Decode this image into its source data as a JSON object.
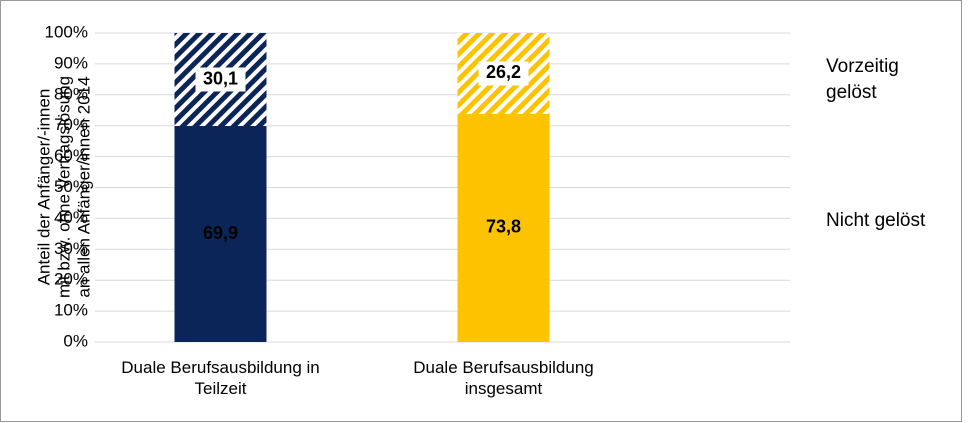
{
  "chart_data": {
    "type": "stacked_bar",
    "ylabel": [
      "Anteil der  Anfänger/-innen",
      "mit bzw. ohne Vertragslösung",
      "an allen Anfänger/innen 2014"
    ],
    "categories": [
      "Duale Berufsausbildung in Teilzeit",
      "Duale Berufsausbildung insgesamt"
    ],
    "series": [
      {
        "name": "Nicht gelöst",
        "colors": [
          "#0c2559",
          "#fdc300"
        ],
        "hatched": false,
        "values": [
          69.9,
          73.8
        ],
        "value_labels": [
          "69,9",
          "73,8"
        ]
      },
      {
        "name": "Vorzeitig gelöst",
        "colors": [
          "#0c2559",
          "#fdc300"
        ],
        "hatched": true,
        "values": [
          30.1,
          26.2
        ],
        "value_labels": [
          "30,1",
          "26,2"
        ]
      }
    ],
    "ylim": [
      0,
      100
    ],
    "yticks": [
      {
        "value": 0,
        "label": "0%"
      },
      {
        "value": 10,
        "label": "10%"
      },
      {
        "value": 20,
        "label": "20%"
      },
      {
        "value": 30,
        "label": "30%"
      },
      {
        "value": 40,
        "label": "40%"
      },
      {
        "value": 50,
        "label": "50%"
      },
      {
        "value": 60,
        "label": "60%"
      },
      {
        "value": 70,
        "label": "70%"
      },
      {
        "value": 80,
        "label": "80%"
      },
      {
        "value": 90,
        "label": "90%"
      },
      {
        "value": 100,
        "label": "100%"
      }
    ],
    "grid": true
  }
}
